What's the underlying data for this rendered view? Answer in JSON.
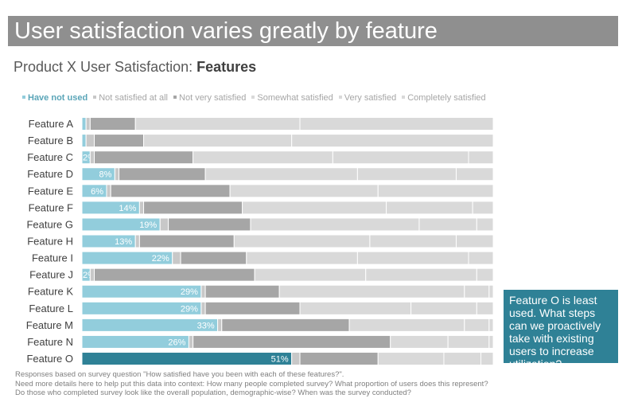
{
  "title": "User satisfaction varies greatly by feature",
  "subtitle_prefix": "Product X User Satisfaction: ",
  "subtitle_bold": "Features",
  "callout": "Feature O is least used. What steps can we proactively take with existing users to increase utilization?",
  "notes": [
    "Responses based on survey question \"How satisfied have you been with each of these features?\".",
    "Need more details here to help put this data into context: How many people completed survey? What proportion of users does this represent?",
    "Do those who completed survey look like the overall population, demographic-wise? When was the survey conducted?"
  ],
  "chart_data": {
    "type": "bar",
    "orientation": "horizontal",
    "stacked": true,
    "percent_stacked": true,
    "categories": [
      "Feature A",
      "Feature B",
      "Feature C",
      "Feature D",
      "Feature E",
      "Feature F",
      "Feature G",
      "Feature H",
      "Feature I",
      "Feature J",
      "Feature K",
      "Feature L",
      "Feature M",
      "Feature N",
      "Feature O"
    ],
    "series": [
      {
        "name": "Have not used",
        "values": [
          1,
          1,
          2,
          8,
          6,
          14,
          19,
          13,
          22,
          2,
          29,
          29,
          33,
          26,
          51
        ],
        "color": "#92cddc"
      },
      {
        "name": "Not satisfied at all",
        "values": [
          1,
          2,
          1,
          1,
          1,
          1,
          2,
          1,
          2,
          1,
          1,
          1,
          1,
          1,
          2
        ],
        "color": "#c8c8c8"
      },
      {
        "name": "Not very satisfied",
        "values": [
          11,
          12,
          24,
          21,
          29,
          24,
          20,
          23,
          16,
          39,
          18,
          23,
          31,
          48,
          19
        ],
        "color": "#a6a6a6"
      },
      {
        "name": "Somewhat satisfied",
        "values": [
          40,
          36,
          34,
          37,
          36,
          35,
          41,
          33,
          27,
          27,
          45,
          27,
          28,
          14,
          16
        ],
        "color": "#d9d9d9"
      },
      {
        "name": "Very satisfied",
        "values": [
          47,
          49,
          33,
          24,
          28,
          21,
          14,
          21,
          27,
          27,
          6,
          16,
          6,
          10,
          9
        ],
        "color": "#d9d9d9"
      },
      {
        "name": "Completely satisfied",
        "values": [
          0,
          0,
          6,
          9,
          0,
          5,
          4,
          9,
          6,
          4,
          1,
          4,
          1,
          1,
          3
        ],
        "color": "#d9d9d9"
      }
    ],
    "highlight_category": "Feature O",
    "highlight_color": "#2f8196",
    "labeled_series": "Have not used",
    "xlim": [
      0,
      100
    ],
    "legend_position": "top",
    "grid": false
  }
}
